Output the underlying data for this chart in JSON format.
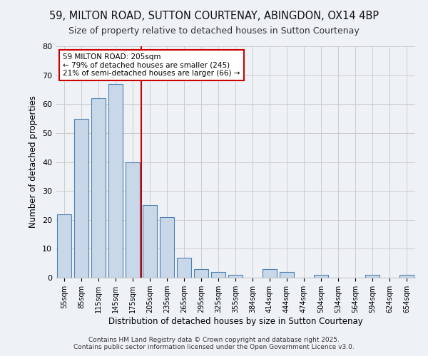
{
  "title1": "59, MILTON ROAD, SUTTON COURTENAY, ABINGDON, OX14 4BP",
  "title2": "Size of property relative to detached houses in Sutton Courtenay",
  "xlabel": "Distribution of detached houses by size in Sutton Courtenay",
  "ylabel": "Number of detached properties",
  "categories": [
    "55sqm",
    "85sqm",
    "115sqm",
    "145sqm",
    "175sqm",
    "205sqm",
    "235sqm",
    "265sqm",
    "295sqm",
    "325sqm",
    "355sqm",
    "384sqm",
    "414sqm",
    "444sqm",
    "474sqm",
    "504sqm",
    "534sqm",
    "564sqm",
    "594sqm",
    "624sqm",
    "654sqm"
  ],
  "values": [
    22,
    55,
    62,
    67,
    40,
    25,
    21,
    7,
    3,
    2,
    1,
    0,
    3,
    2,
    0,
    1,
    0,
    0,
    1,
    0,
    1
  ],
  "bar_color": "#c8d8e8",
  "bar_edge_color": "#5080b0",
  "annotation_text": "59 MILTON ROAD: 205sqm\n← 79% of detached houses are smaller (245)\n21% of semi-detached houses are larger (66) →",
  "annotation_box_color": "#ffffff",
  "annotation_box_edge": "#cc0000",
  "vline_color": "#cc0000",
  "ylim": [
    0,
    80
  ],
  "yticks": [
    0,
    10,
    20,
    30,
    40,
    50,
    60,
    70,
    80
  ],
  "footer": "Contains HM Land Registry data © Crown copyright and database right 2025.\nContains public sector information licensed under the Open Government Licence v3.0.",
  "bg_color": "#eef2f7",
  "plot_bg_color": "#eef2f7",
  "grid_color": "#cccccc"
}
